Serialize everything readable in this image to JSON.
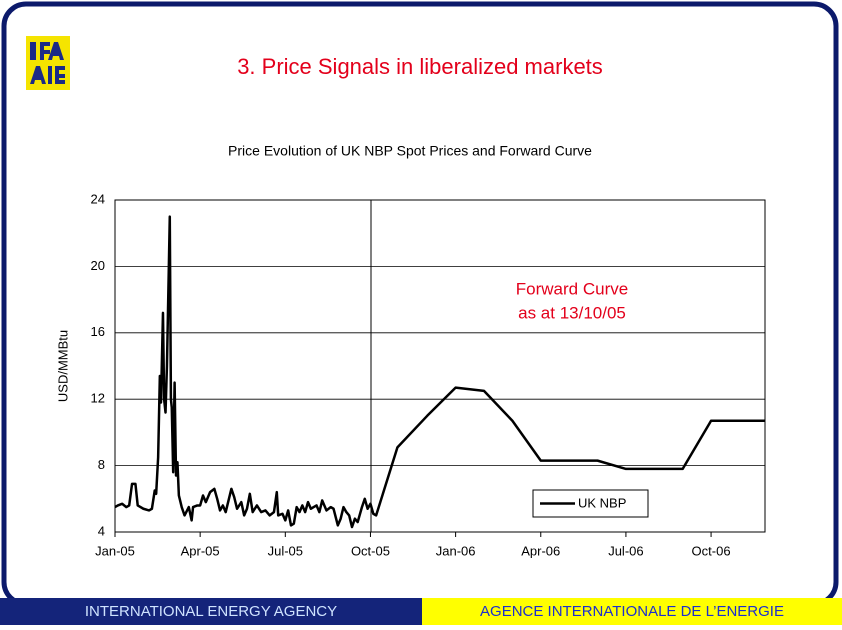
{
  "slide": {
    "title": "3. Price Signals in liberalized markets",
    "footer_left": "INTERNATIONAL ENERGY AGENCY",
    "footer_right": "AGENCE INTERNATIONALE DE L’ENERGIE"
  },
  "chart_data": {
    "type": "line",
    "title": "Price Evolution of UK NBP Spot Prices and Forward Curve",
    "y_label": "USD/MMBtu",
    "annotation": [
      "Forward Curve",
      "as at 13/10/05"
    ],
    "x": [
      0,
      0.1,
      0.25,
      0.4,
      0.5,
      0.6,
      0.72,
      0.8,
      1.0,
      1.2,
      1.3,
      1.4,
      1.45,
      1.52,
      1.58,
      1.62,
      1.69,
      1.73,
      1.78,
      1.83,
      1.93,
      1.97,
      2.0,
      2.05,
      2.1,
      2.15,
      2.2,
      2.25,
      2.35,
      2.45,
      2.6,
      2.7,
      2.75,
      2.9,
      3.0,
      3.1,
      3.2,
      3.35,
      3.5,
      3.6,
      3.7,
      3.8,
      3.9,
      4.0,
      4.1,
      4.2,
      4.3,
      4.45,
      4.55,
      4.65,
      4.75,
      4.85,
      5.0,
      5.15,
      5.3,
      5.45,
      5.6,
      5.7,
      5.75,
      5.9,
      6.0,
      6.1,
      6.2,
      6.3,
      6.4,
      6.5,
      6.6,
      6.7,
      6.8,
      6.9,
      7.0,
      7.1,
      7.2,
      7.3,
      7.45,
      7.6,
      7.7,
      7.85,
      7.95,
      8.05,
      8.15,
      8.25,
      8.35,
      8.45,
      8.55,
      8.7,
      8.8,
      8.9,
      9.0,
      9.1,
      9.2,
      9.95,
      11,
      12,
      13,
      14,
      15,
      16,
      17,
      18,
      19,
      20,
      21,
      22,
      22.9
    ],
    "series": [
      {
        "name": "UK NBP",
        "color": "#000000",
        "values": [
          5.5,
          5.6,
          5.7,
          5.5,
          5.6,
          6.9,
          6.9,
          5.6,
          5.4,
          5.3,
          5.4,
          6.5,
          6.3,
          8.5,
          13.4,
          11.8,
          17.2,
          12.0,
          11.2,
          14.0,
          23.0,
          12.0,
          11.5,
          7.6,
          13.0,
          7.4,
          8.2,
          6.2,
          5.5,
          5.0,
          5.5,
          4.7,
          5.5,
          5.6,
          5.6,
          6.2,
          5.8,
          6.4,
          6.6,
          6.0,
          5.3,
          5.6,
          5.2,
          5.9,
          6.6,
          6.1,
          5.4,
          5.8,
          5.0,
          5.4,
          6.3,
          5.2,
          5.6,
          5.2,
          5.3,
          5.0,
          5.2,
          6.4,
          5.0,
          5.1,
          4.7,
          5.3,
          4.4,
          4.5,
          5.5,
          5.2,
          5.6,
          5.2,
          5.8,
          5.4,
          5.5,
          5.6,
          5.2,
          5.9,
          5.3,
          5.5,
          5.4,
          4.4,
          4.8,
          5.5,
          5.2,
          5.0,
          4.3,
          4.8,
          4.6,
          5.5,
          6.0,
          5.4,
          5.7,
          5.1,
          5.0,
          9.1,
          11.0,
          12.7,
          12.5,
          10.7,
          8.3,
          8.3,
          8.3,
          7.8,
          7.8,
          7.8,
          10.7,
          10.7,
          10.7
        ]
      }
    ],
    "xlim": [
      0,
      22.9
    ],
    "ylim": [
      4,
      24
    ],
    "xticks": [
      {
        "value": 0,
        "label": "Jan-05"
      },
      {
        "value": 3,
        "label": "Apr-05"
      },
      {
        "value": 6,
        "label": "Jul-05"
      },
      {
        "value": 9,
        "label": "Oct-05"
      },
      {
        "value": 12,
        "label": "Jan-06"
      },
      {
        "value": 15,
        "label": "Apr-06"
      },
      {
        "value": 18,
        "label": "Jul-06"
      },
      {
        "value": 21,
        "label": "Oct-06"
      }
    ],
    "yticks": [
      4,
      8,
      12,
      16,
      20,
      24
    ],
    "grid": true,
    "legend": "lower right"
  }
}
